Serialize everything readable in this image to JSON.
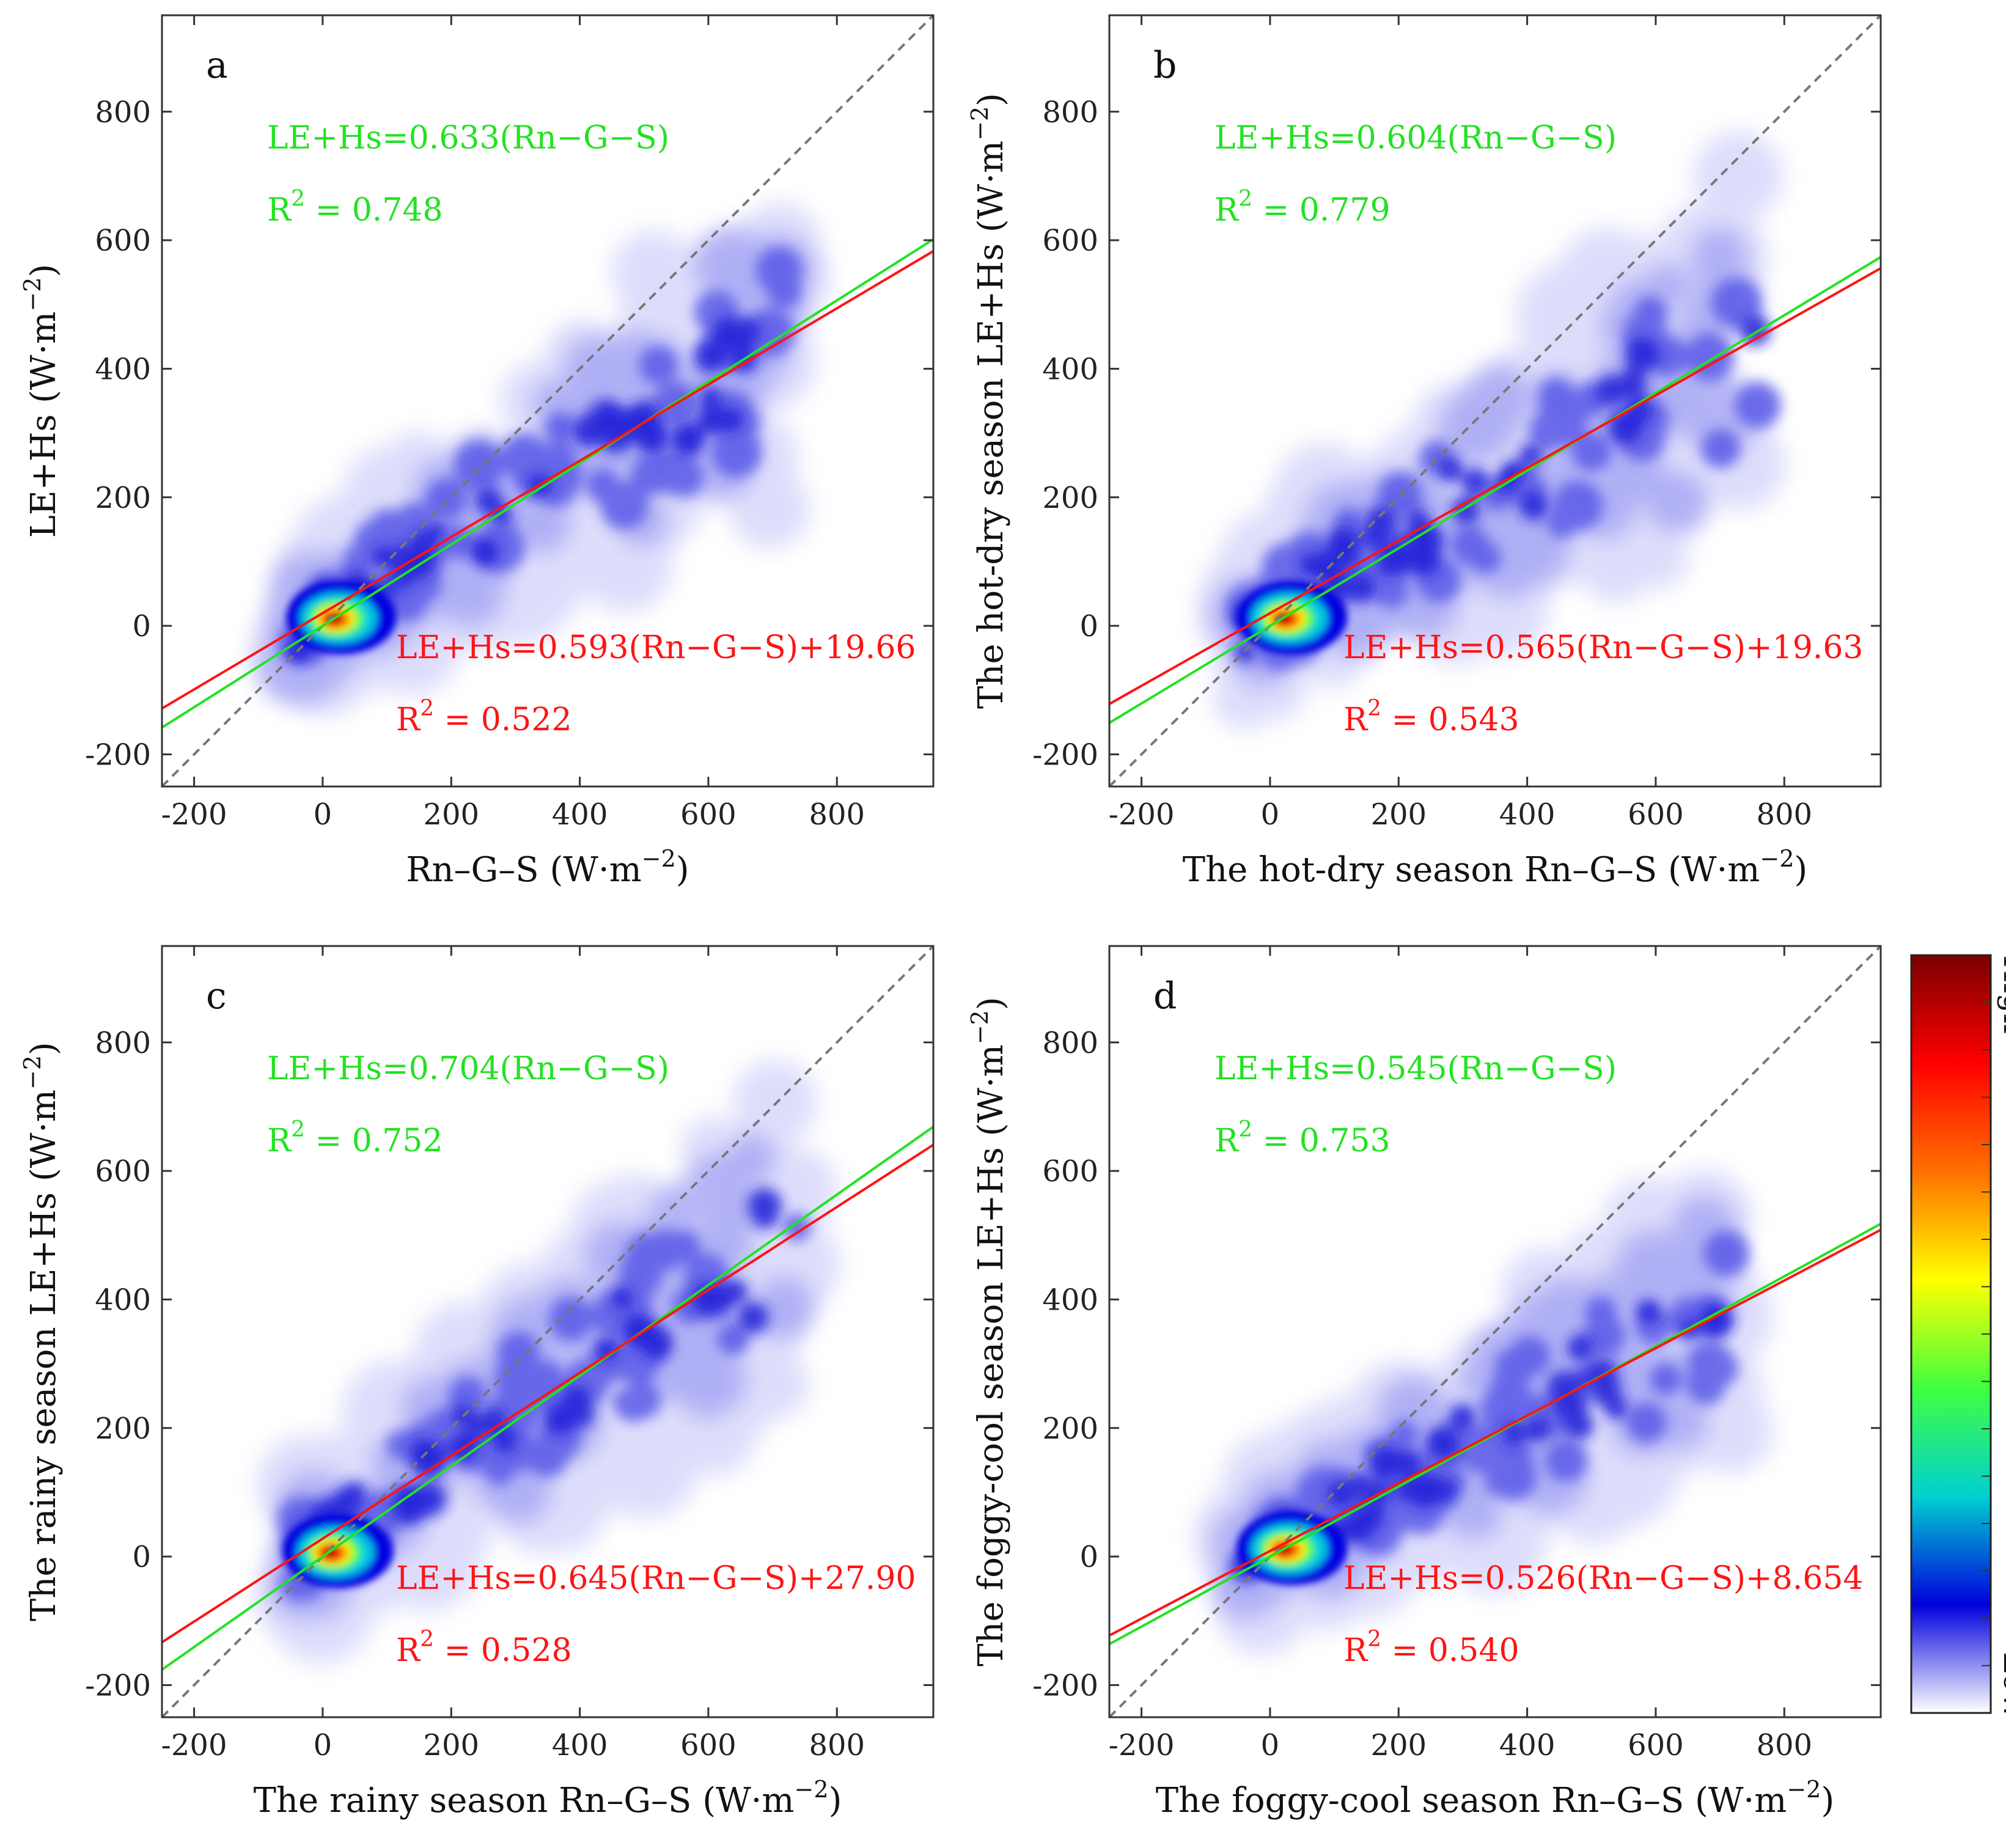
{
  "chart_data": [
    {
      "type": "scatter",
      "panel_label": "a",
      "xlabel": "Rn–G–S",
      "ylabel": "LE+Hs",
      "unit_prefix": "(W·m",
      "unit_exp": "−2",
      "unit_suffix": ")",
      "xlim": [
        -250,
        950
      ],
      "ylim": [
        -250,
        950
      ],
      "x_ticks": [
        "-200",
        "0",
        "200",
        "400",
        "600",
        "800"
      ],
      "y_ticks": [
        "-200",
        "0",
        "200",
        "400",
        "600",
        "800"
      ],
      "one_to_one_line": true,
      "fit_origin": {
        "equation": "LE+Hs=0.633(Rn−G−S)",
        "r2_prefix": "R",
        "r2_exp": "2",
        "r2_value": " = 0.748",
        "slope": 0.633,
        "intercept": 0,
        "color": "#22e222"
      },
      "fit_free": {
        "equation": "LE+Hs=0.593(Rn−G−S)+19.66",
        "r2_prefix": "R",
        "r2_exp": "2",
        "r2_value": " = 0.522",
        "slope": 0.593,
        "intercept": 19.66,
        "color": "#ff1414"
      },
      "density": {
        "center": [
          15,
          10
        ],
        "spread": 1.0,
        "max_x": 720
      }
    },
    {
      "type": "scatter",
      "panel_label": "b",
      "xlabel": "The hot-dry season Rn–G–S",
      "ylabel": "The hot-dry season LE+Hs",
      "unit_prefix": "(W·m",
      "unit_exp": "−2",
      "unit_suffix": ")",
      "xlim": [
        -250,
        950
      ],
      "ylim": [
        -250,
        950
      ],
      "x_ticks": [
        "-200",
        "0",
        "200",
        "400",
        "600",
        "800"
      ],
      "y_ticks": [
        "-200",
        "0",
        "200",
        "400",
        "600",
        "800"
      ],
      "one_to_one_line": true,
      "fit_origin": {
        "equation": "LE+Hs=0.604(Rn−G−S)",
        "r2_prefix": "R",
        "r2_exp": "2",
        "r2_value": " = 0.779",
        "slope": 0.604,
        "intercept": 0,
        "color": "#22e222"
      },
      "fit_free": {
        "equation": "LE+Hs=0.565(Rn−G−S)+19.63",
        "r2_prefix": "R",
        "r2_exp": "2",
        "r2_value": " = 0.543",
        "slope": 0.565,
        "intercept": 19.63,
        "color": "#ff1414"
      },
      "density": {
        "center": [
          20,
          10
        ],
        "spread": 1.1,
        "max_x": 760
      }
    },
    {
      "type": "scatter",
      "panel_label": "c",
      "xlabel": "The rainy season Rn–G–S",
      "ylabel": "The rainy season LE+Hs",
      "unit_prefix": "(W·m",
      "unit_exp": "−2",
      "unit_suffix": ")",
      "xlim": [
        -250,
        950
      ],
      "ylim": [
        -250,
        950
      ],
      "x_ticks": [
        "-200",
        "0",
        "200",
        "400",
        "600",
        "800"
      ],
      "y_ticks": [
        "-200",
        "0",
        "200",
        "400",
        "600",
        "800"
      ],
      "one_to_one_line": true,
      "fit_origin": {
        "equation": "LE+Hs=0.704(Rn−G−S)",
        "r2_prefix": "R",
        "r2_exp": "2",
        "r2_value": " = 0.752",
        "slope": 0.704,
        "intercept": 0,
        "color": "#22e222"
      },
      "fit_free": {
        "equation": "LE+Hs=0.645(Rn−G−S)+27.90",
        "r2_prefix": "R",
        "r2_exp": "2",
        "r2_value": " = 0.528",
        "slope": 0.645,
        "intercept": 27.9,
        "color": "#ff1414"
      },
      "density": {
        "center": [
          10,
          5
        ],
        "spread": 1.0,
        "max_x": 740
      }
    },
    {
      "type": "scatter",
      "panel_label": "d",
      "xlabel": "The foggy-cool season Rn–G–S",
      "ylabel": "The foggy-cool season LE+Hs",
      "unit_prefix": "(W·m",
      "unit_exp": "−2",
      "unit_suffix": ")",
      "xlim": [
        -250,
        950
      ],
      "ylim": [
        -250,
        950
      ],
      "x_ticks": [
        "-200",
        "0",
        "200",
        "400",
        "600",
        "800"
      ],
      "y_ticks": [
        "-200",
        "0",
        "200",
        "400",
        "600",
        "800"
      ],
      "one_to_one_line": true,
      "fit_origin": {
        "equation": "LE+Hs=0.545(Rn−G−S)",
        "r2_prefix": "R",
        "r2_exp": "2",
        "r2_value": " = 0.753",
        "slope": 0.545,
        "intercept": 0,
        "color": "#22e222"
      },
      "fit_free": {
        "equation": "LE+Hs=0.526(Rn−G−S)+8.654",
        "r2_prefix": "R",
        "r2_exp": "2",
        "r2_value": " = 0.540",
        "slope": 0.526,
        "intercept": 8.654,
        "color": "#ff1414"
      },
      "density": {
        "center": [
          20,
          10
        ],
        "spread": 0.9,
        "max_x": 720
      }
    }
  ],
  "colorbar": {
    "high_label": "High",
    "low_label": "Low",
    "stops": [
      "#ffffff",
      "#0000dd",
      "#00d0d0",
      "#40ff40",
      "#ffff00",
      "#ff7000",
      "#ff0000",
      "#7a0000"
    ]
  }
}
